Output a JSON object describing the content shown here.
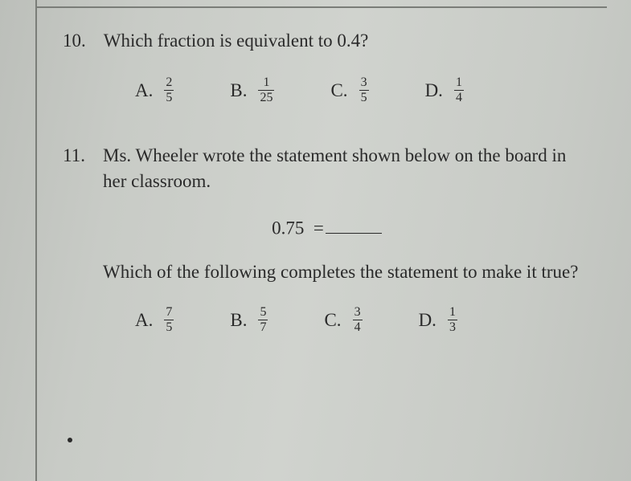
{
  "page": {
    "background_gradient": [
      "#bcbfba",
      "#c8cbc6",
      "#d0d3ce",
      "#c8cbc6",
      "#bfc2bd"
    ],
    "text_color": "#2a2a2a",
    "rule_color": "#7a7d78",
    "base_fontsize": 23
  },
  "q10": {
    "number": "10.",
    "text": "Which fraction is equivalent to 0.4?",
    "options": [
      {
        "letter": "A.",
        "num": "2",
        "den": "5"
      },
      {
        "letter": "B.",
        "num": "1",
        "den": "25"
      },
      {
        "letter": "C.",
        "num": "3",
        "den": "5"
      },
      {
        "letter": "D.",
        "num": "1",
        "den": "4"
      }
    ]
  },
  "q11": {
    "number": "11.",
    "text": "Ms. Wheeler wrote the statement shown below on the board in her classroom.",
    "statement_lhs": "0.75",
    "statement_eq": "=",
    "sub_text": "Which of the following completes the statement to make it true?",
    "options": [
      {
        "letter": "A.",
        "num": "7",
        "den": "5"
      },
      {
        "letter": "B.",
        "num": "5",
        "den": "7"
      },
      {
        "letter": "C.",
        "num": "3",
        "den": "4"
      },
      {
        "letter": "D.",
        "num": "1",
        "den": "3"
      }
    ]
  }
}
